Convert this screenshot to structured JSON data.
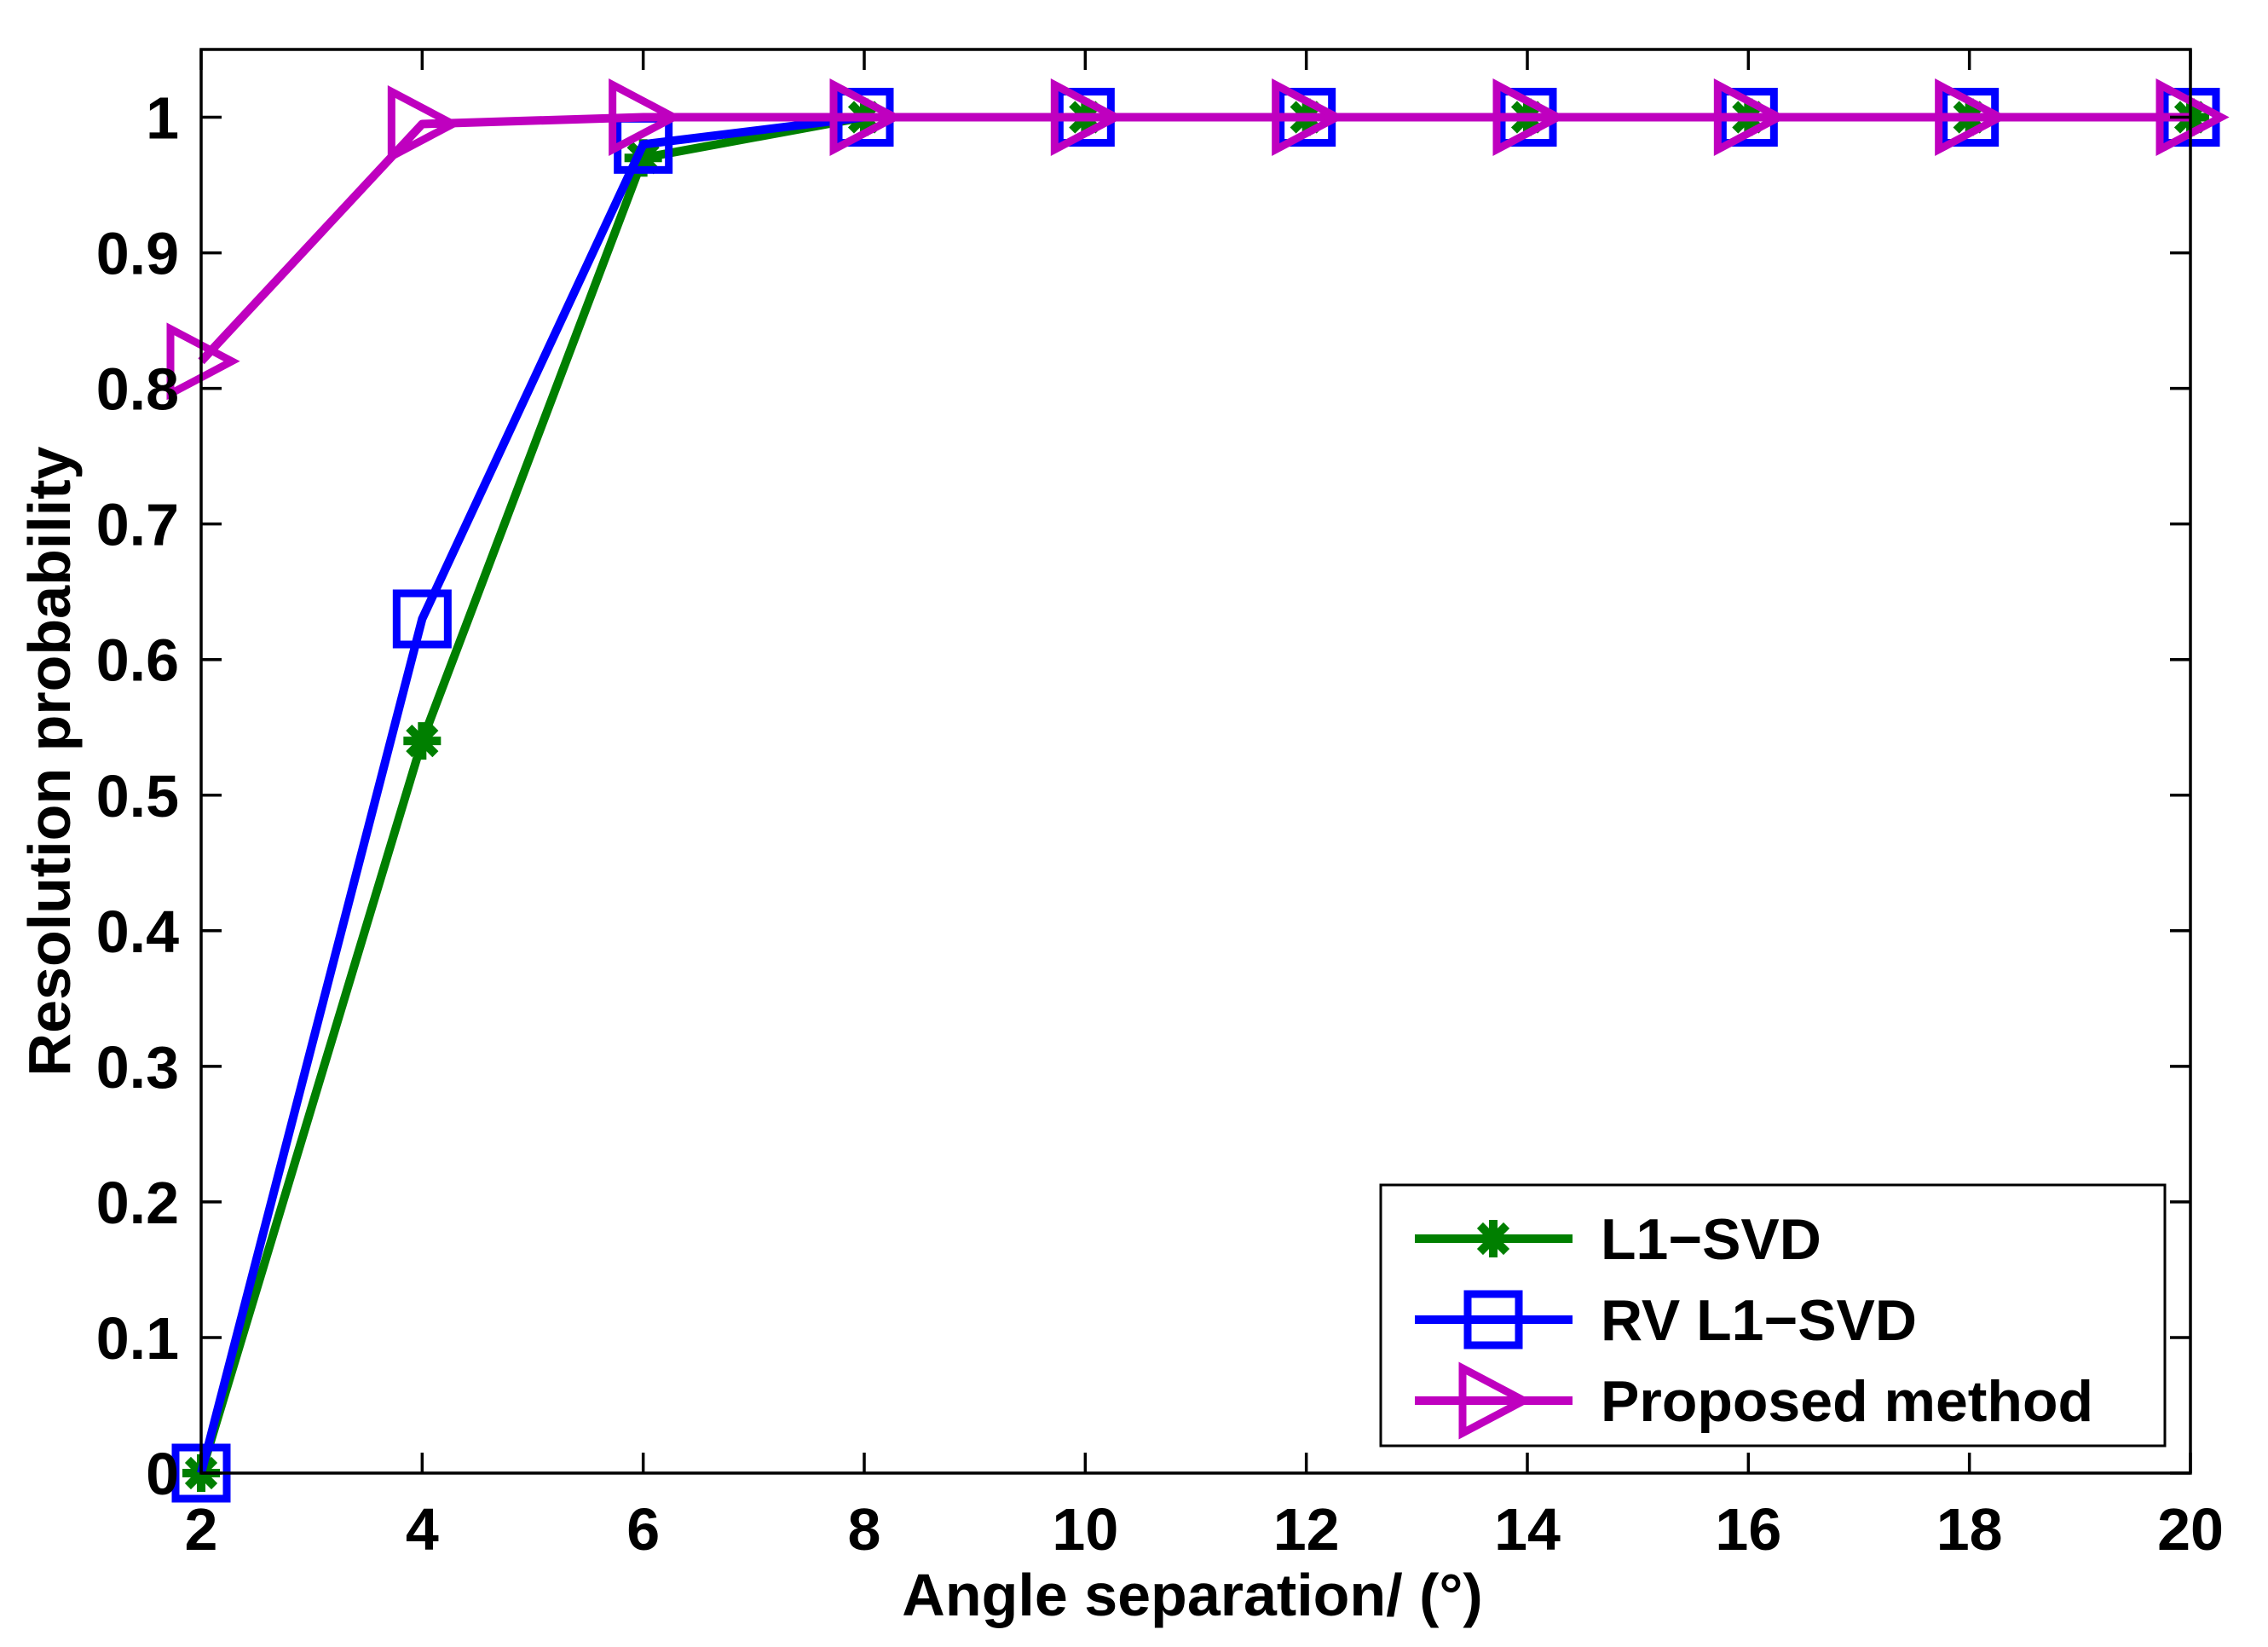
{
  "chart_data": {
    "type": "line",
    "title": "",
    "xlabel": "Angle  separation/ (°)",
    "ylabel": "Resolution probability",
    "x": [
      2,
      4,
      6,
      8,
      10,
      12,
      14,
      16,
      18,
      20
    ],
    "xlim": [
      2,
      20
    ],
    "ylim": [
      0,
      1.05
    ],
    "xticks": [
      "2",
      "4",
      "6",
      "8",
      "10",
      "12",
      "14",
      "16",
      "18",
      "20"
    ],
    "yticks": [
      "0",
      "0.1",
      "0.2",
      "0.3",
      "0.4",
      "0.5",
      "0.6",
      "0.7",
      "0.8",
      "0.9",
      "1"
    ],
    "ytick_values": [
      0,
      0.1,
      0.2,
      0.3,
      0.4,
      0.5,
      0.6,
      0.7,
      0.8,
      0.9,
      1
    ],
    "grid": false,
    "legend_position": "bottom-right",
    "series": [
      {
        "name": "L1−SVD",
        "color": "#007F00",
        "marker": "asterisk",
        "values": [
          0,
          0.54,
          0.97,
          1,
          1,
          1,
          1,
          1,
          1,
          1
        ]
      },
      {
        "name": "RV L1−SVD",
        "color": "#0000FF",
        "marker": "square",
        "values": [
          0,
          0.63,
          0.98,
          1,
          1,
          1,
          1,
          1,
          1,
          1
        ]
      },
      {
        "name": "Proposed method",
        "color": "#BF00BF",
        "marker": "triangle-right",
        "values": [
          0.82,
          0.995,
          1,
          1,
          1,
          1,
          1,
          1,
          1,
          1
        ]
      }
    ]
  }
}
